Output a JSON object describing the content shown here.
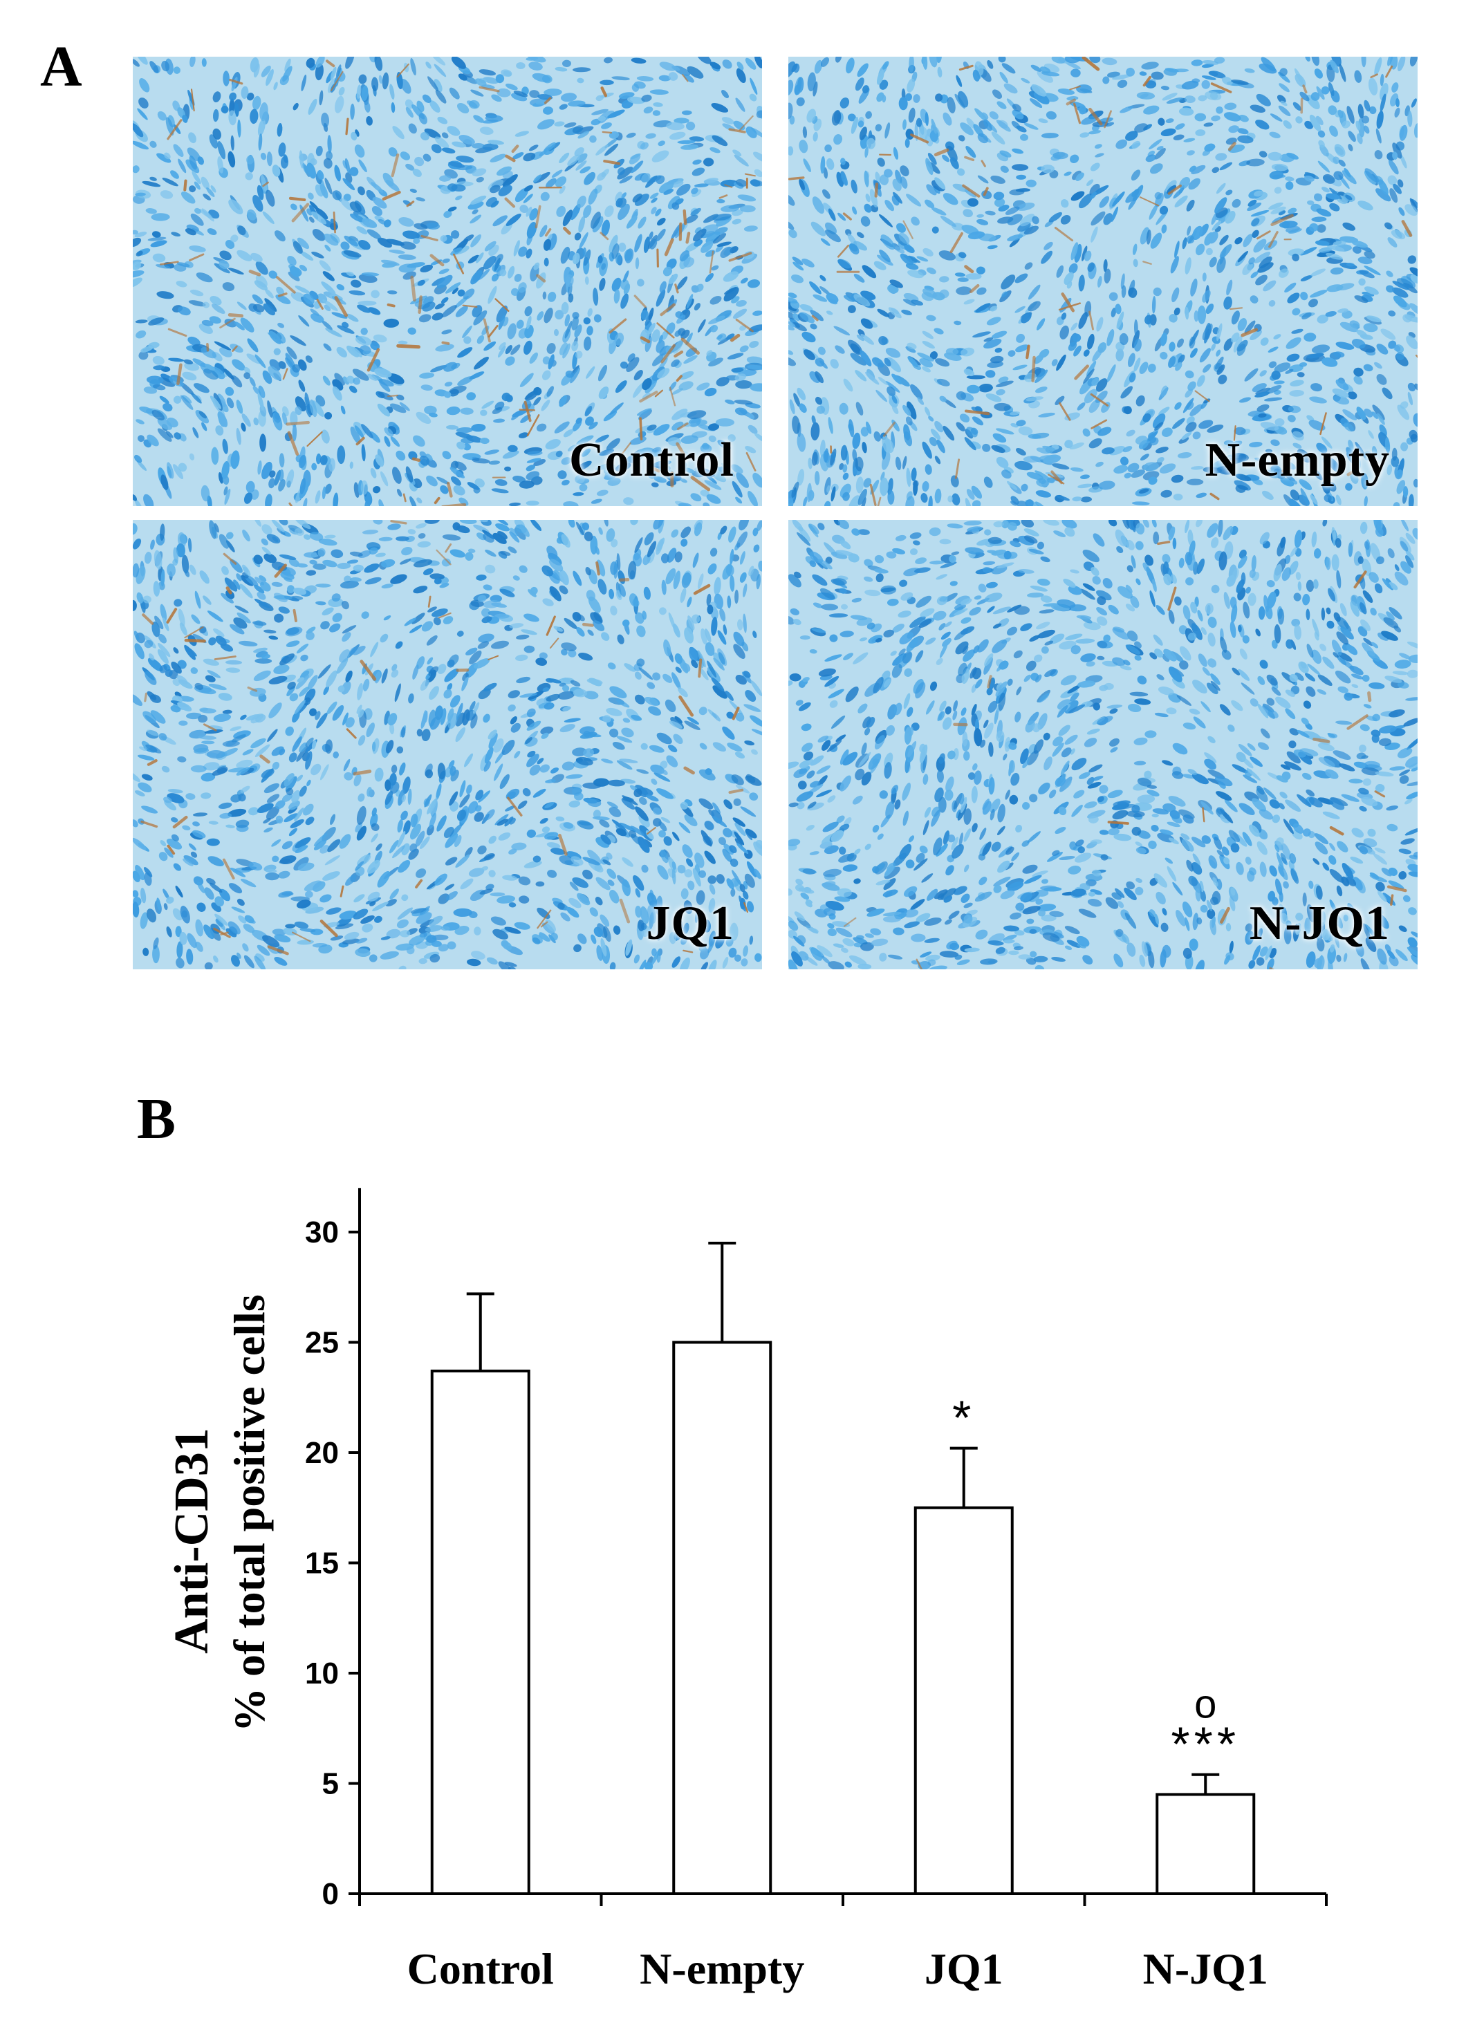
{
  "panels": {
    "a_label": "A",
    "b_label": "B"
  },
  "micrographs": [
    {
      "label": "Control",
      "stain_density": 0.9
    },
    {
      "label": "N-empty",
      "stain_density": 0.55
    },
    {
      "label": "JQ1",
      "stain_density": 0.45
    },
    {
      "label": "N-JQ1",
      "stain_density": 0.15
    }
  ],
  "colors": {
    "background_tissue": "#b8dcef",
    "nuclei": "#2c8fd6",
    "stain": "#b4753a"
  },
  "chart_data": {
    "type": "bar",
    "categories": [
      "Control",
      "N-empty",
      "JQ1",
      "N-JQ1"
    ],
    "values": [
      23.7,
      25.0,
      17.5,
      4.5
    ],
    "errors": [
      3.5,
      4.5,
      2.7,
      0.9
    ],
    "annotations": [
      {
        "category": "Control",
        "text": ""
      },
      {
        "category": "N-empty",
        "text": ""
      },
      {
        "category": "JQ1",
        "text": "*"
      },
      {
        "category": "N-JQ1",
        "text": "***",
        "text_above": "o"
      }
    ],
    "ylabel_line1": "Anti-CD31",
    "ylabel_line2": "% of total positive cells",
    "yticks": [
      "0",
      "5",
      "10",
      "15",
      "20",
      "25",
      "30"
    ],
    "ylim": [
      0,
      32
    ],
    "bar_fill": "#ffffff",
    "bar_stroke": "#000000",
    "grid": false
  }
}
